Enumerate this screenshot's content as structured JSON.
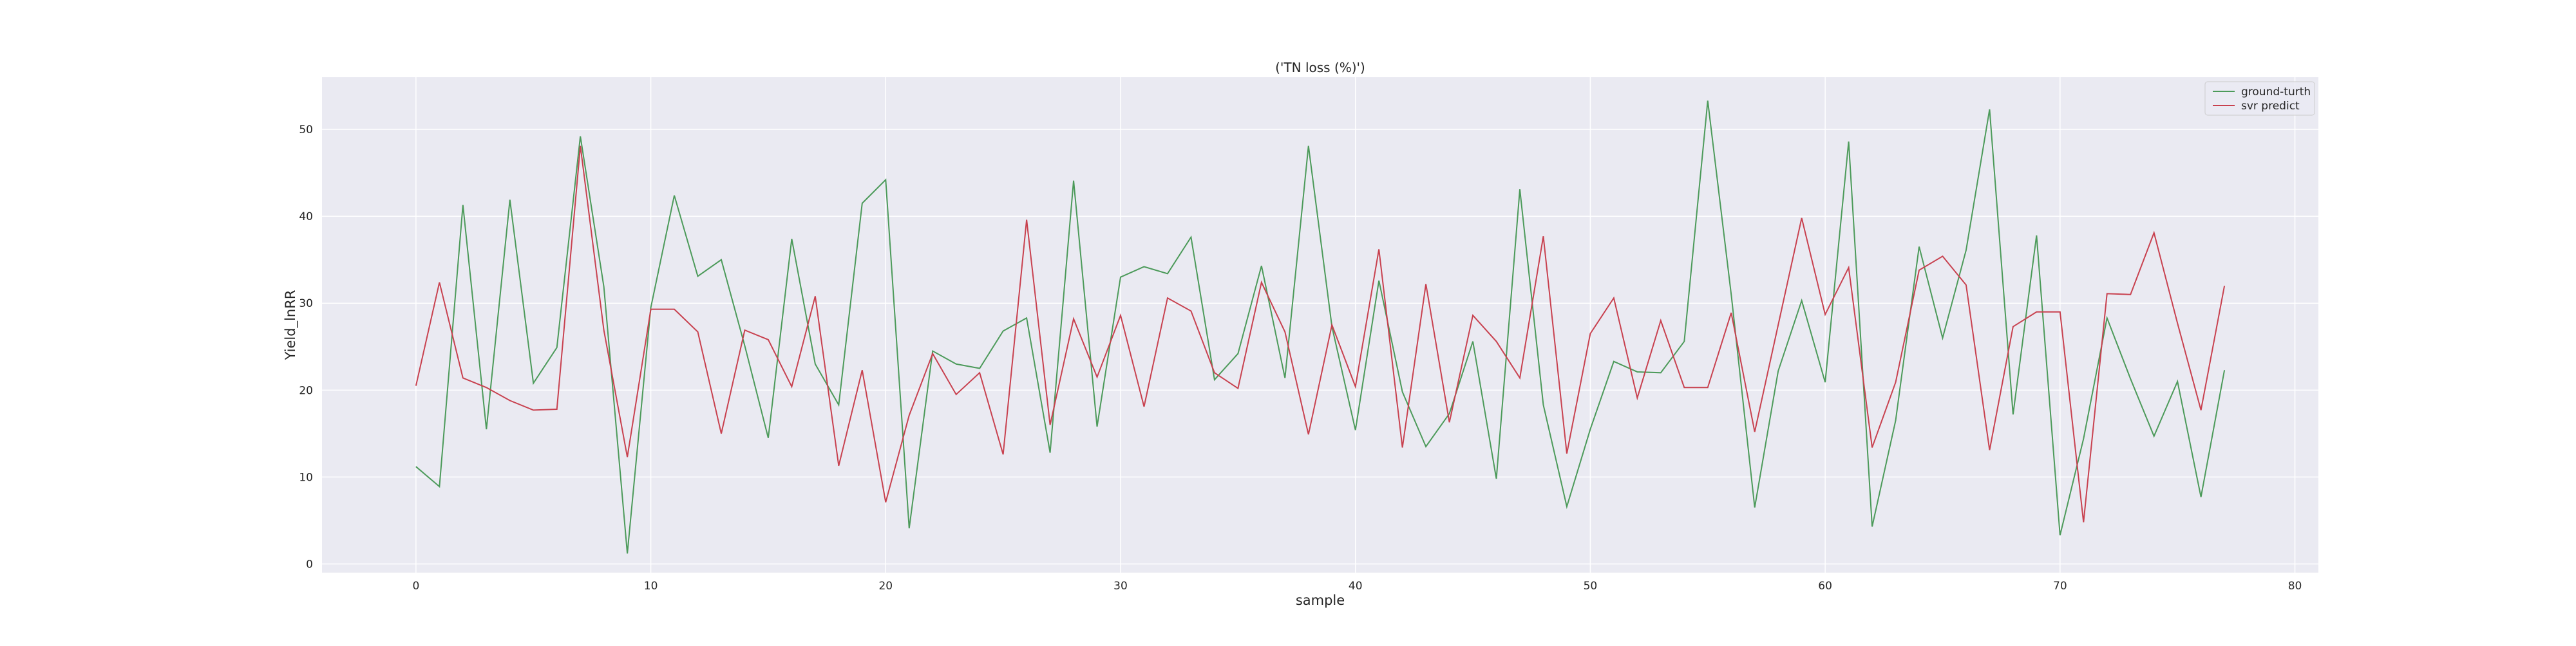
{
  "chart_data": {
    "type": "line",
    "title": "('TN loss (%)')",
    "xlabel": "sample",
    "ylabel": "Yield_lnRR",
    "xlim": [
      -4,
      81
    ],
    "ylim": [
      -1,
      56
    ],
    "xticks": [
      0,
      10,
      20,
      30,
      40,
      50,
      60,
      70,
      80
    ],
    "yticks": [
      0,
      10,
      20,
      30,
      40,
      50
    ],
    "grid": true,
    "legend_position": "top-right",
    "background": "#eaeaf2",
    "x": [
      0,
      1,
      2,
      3,
      4,
      5,
      6,
      7,
      8,
      9,
      10,
      11,
      12,
      13,
      14,
      15,
      16,
      17,
      18,
      19,
      20,
      21,
      22,
      23,
      24,
      25,
      26,
      27,
      28,
      29,
      30,
      31,
      32,
      33,
      34,
      35,
      36,
      37,
      38,
      39,
      40,
      41,
      42,
      43,
      44,
      45,
      46,
      47,
      48,
      49,
      50,
      51,
      52,
      53,
      54,
      55,
      56,
      57,
      58,
      59,
      60,
      61,
      62,
      63,
      64,
      65,
      66,
      67,
      68,
      69,
      70,
      71,
      72,
      73,
      74,
      75,
      76,
      77
    ],
    "series": [
      {
        "name": "ground-turth",
        "color": "#4c9a5a",
        "values": [
          11.2,
          8.9,
          41.3,
          15.5,
          41.9,
          20.8,
          24.9,
          49.2,
          31.9,
          1.2,
          29.5,
          42.4,
          33.1,
          35.0,
          25.1,
          14.5,
          37.4,
          23.0,
          18.3,
          41.5,
          44.2,
          4.1,
          24.5,
          23.0,
          22.5,
          26.8,
          28.3,
          12.8,
          44.1,
          15.8,
          33.0,
          34.2,
          33.4,
          37.6,
          21.2,
          24.2,
          34.3,
          21.4,
          48.1,
          27.3,
          15.4,
          32.6,
          19.8,
          13.5,
          17.3,
          25.6,
          9.8,
          43.1,
          18.3,
          6.6,
          15.5,
          23.3,
          22.1,
          22.0,
          25.6,
          53.3,
          31.0,
          6.5,
          22.2,
          30.3,
          20.9,
          48.6,
          4.3,
          16.5,
          36.5,
          26.0,
          36.1,
          52.3,
          17.2,
          37.8,
          3.3,
          14.4,
          28.3,
          21.3,
          14.7,
          21.0,
          7.7,
          22.3
        ]
      },
      {
        "name": "svr predict",
        "color": "#c8414f",
        "values": [
          20.5,
          32.4,
          21.4,
          20.3,
          18.8,
          17.7,
          17.8,
          48.1,
          26.9,
          12.3,
          29.3,
          29.3,
          26.7,
          15.0,
          26.9,
          25.8,
          20.4,
          30.8,
          11.3,
          22.3,
          7.1,
          17.1,
          24.2,
          19.5,
          22.0,
          12.6,
          39.6,
          16.0,
          28.2,
          21.5,
          28.6,
          18.1,
          30.6,
          29.1,
          22.0,
          20.2,
          32.4,
          26.7,
          14.9,
          27.5,
          20.4,
          36.2,
          13.4,
          32.2,
          16.3,
          28.6,
          25.6,
          21.4,
          37.7,
          12.7,
          26.5,
          30.6,
          19.1,
          28.0,
          20.3,
          20.3,
          28.9,
          15.2,
          27.5,
          39.8,
          28.7,
          34.1,
          13.4,
          20.9,
          33.8,
          35.4,
          32.1,
          13.1,
          27.3,
          29.0,
          29.0,
          4.8,
          31.1,
          31.0,
          38.1,
          27.7,
          17.7,
          32.0
        ]
      }
    ]
  }
}
